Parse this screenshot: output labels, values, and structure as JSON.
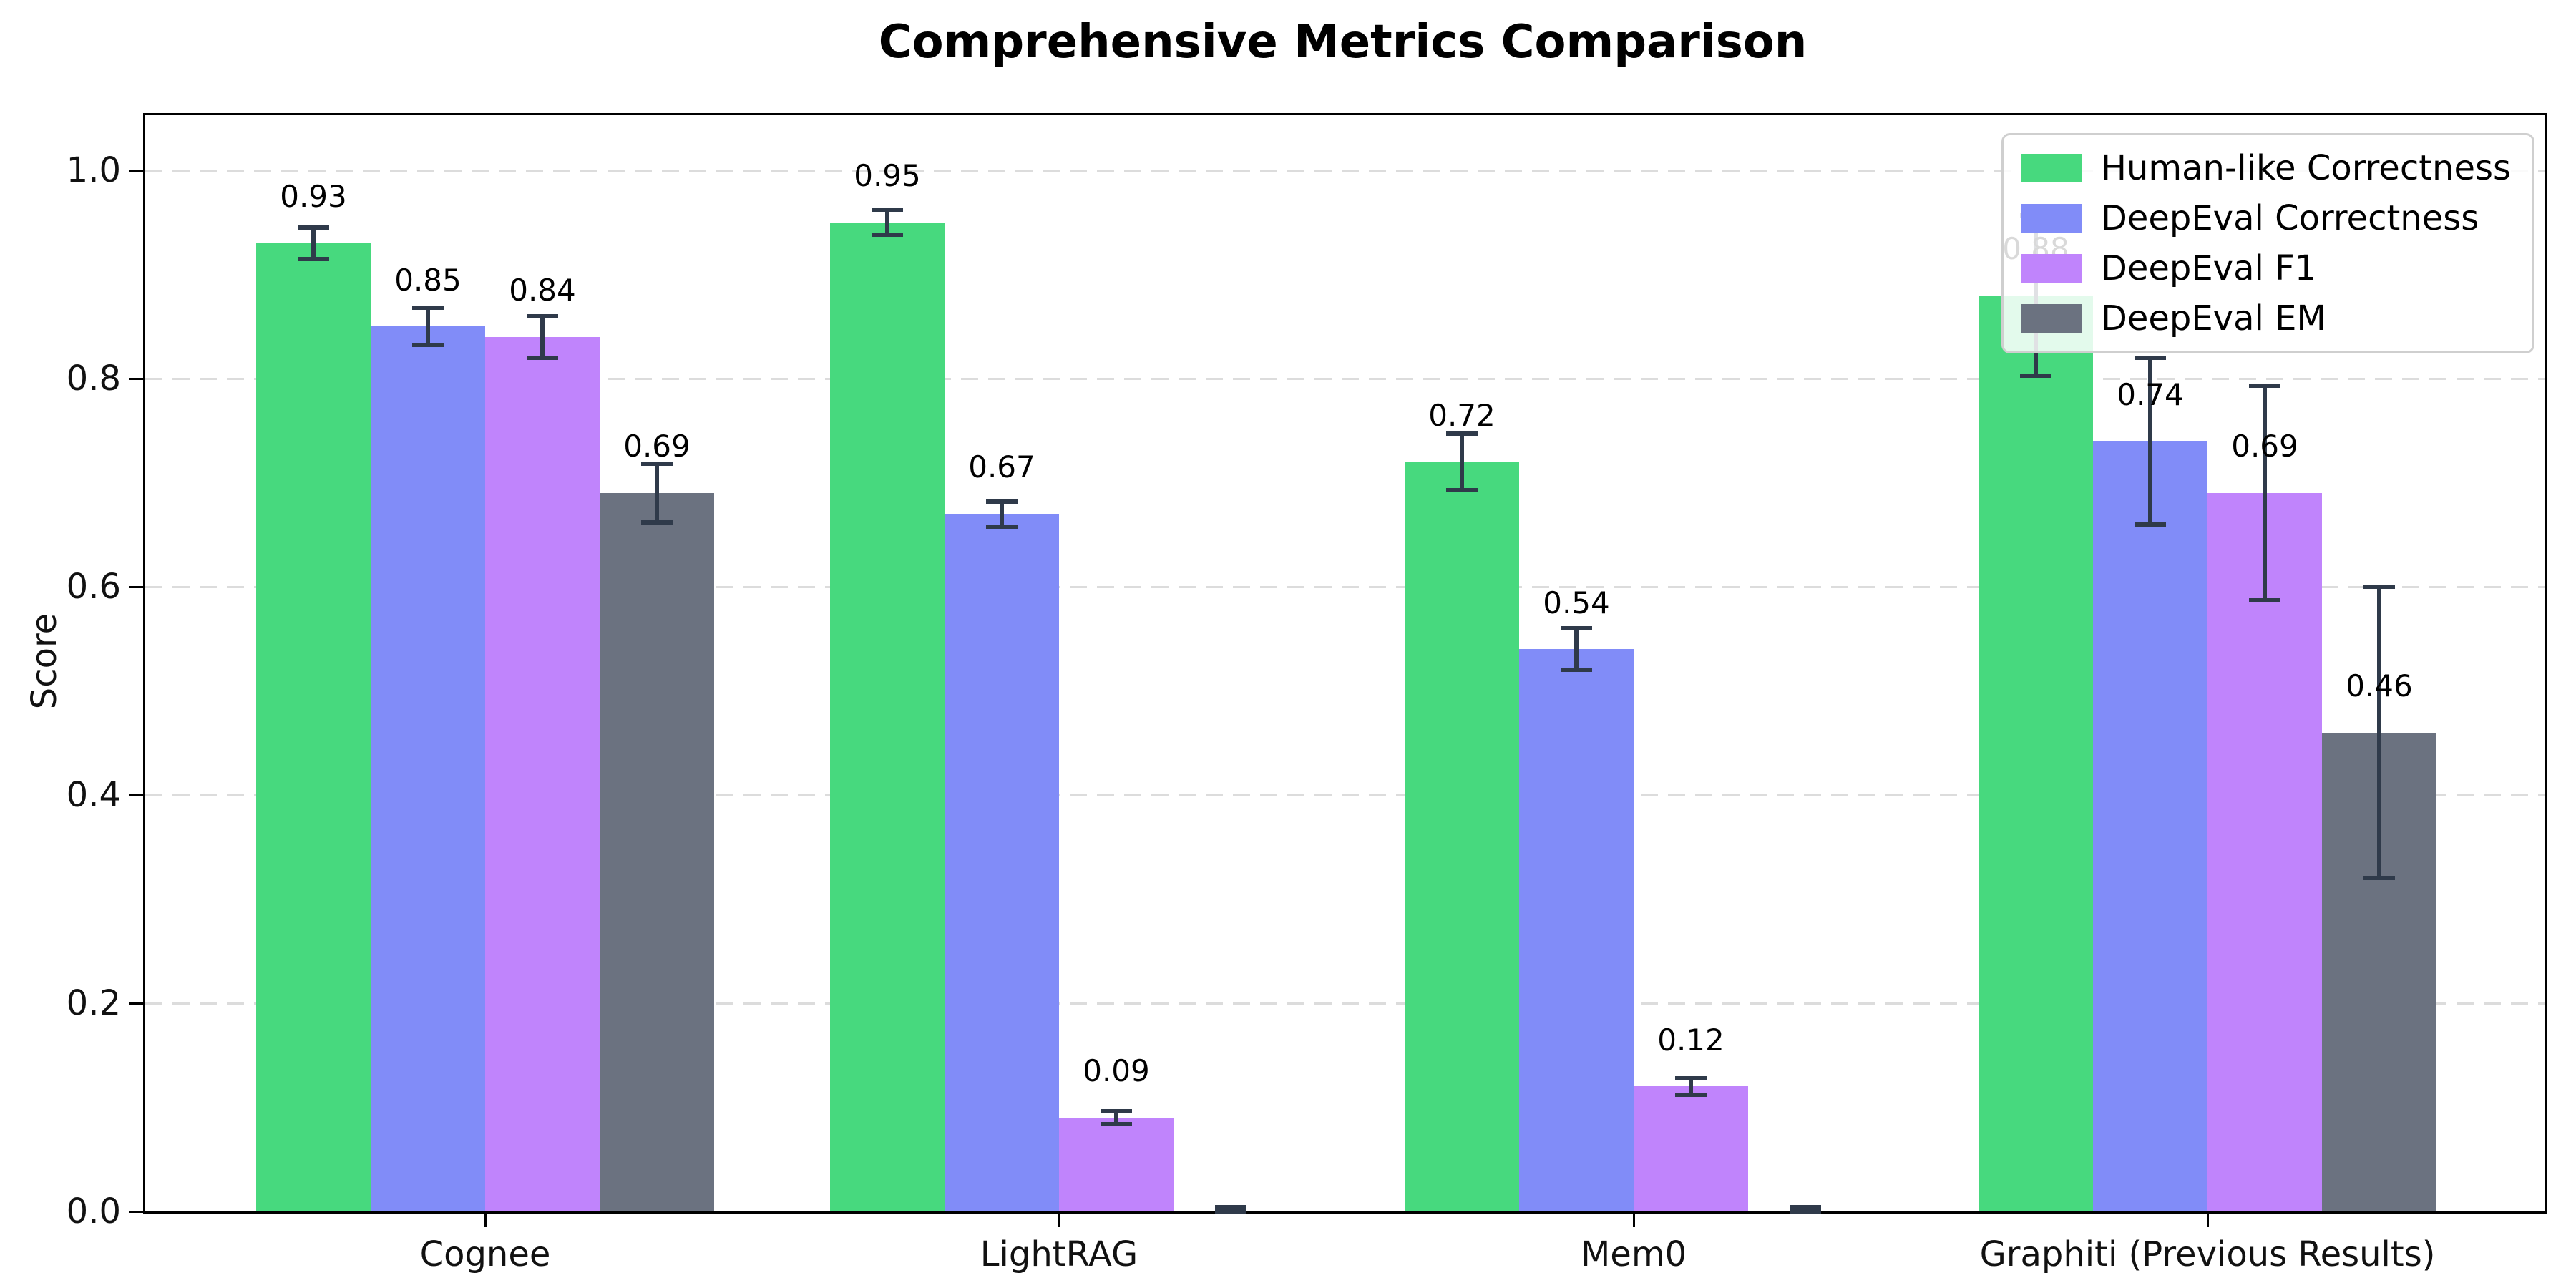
{
  "chart_data": {
    "type": "bar",
    "title": "Comprehensive Metrics Comparison",
    "xlabel": "",
    "ylabel": "Score",
    "categories": [
      "Cognee",
      "LightRAG",
      "Mem0",
      "Graphiti (Previous Results)"
    ],
    "series": [
      {
        "name": "Human-like Correctness",
        "color": "#47d97e",
        "values": [
          0.93,
          0.95,
          0.72,
          0.88
        ],
        "errors": [
          0.015,
          0.012,
          0.027,
          0.077
        ]
      },
      {
        "name": "DeepEval Correctness",
        "color": "#818cf8",
        "values": [
          0.85,
          0.67,
          0.54,
          0.74
        ],
        "errors": [
          0.018,
          0.012,
          0.02,
          0.08
        ]
      },
      {
        "name": "DeepEval F1",
        "color": "#c084fc",
        "values": [
          0.84,
          0.09,
          0.12,
          0.69
        ],
        "errors": [
          0.02,
          0.006,
          0.008,
          0.103
        ]
      },
      {
        "name": "DeepEval EM",
        "color": "#6b7280",
        "values": [
          0.69,
          0.0,
          0.0,
          0.46
        ],
        "errors": [
          0.028,
          0.004,
          0.004,
          0.14
        ]
      }
    ],
    "ylim": [
      0,
      1.05
    ],
    "yticks": [
      "0.0",
      "0.2",
      "0.4",
      "0.6",
      "0.8",
      "1.0"
    ],
    "grid": true,
    "legend_position": "upper right",
    "value_labels": [
      "0.93",
      "0.85",
      "0.84",
      "0.69",
      "0.95",
      "0.67",
      "0.09",
      "0.72",
      "0.54",
      "0.12",
      "0.88",
      "0.74",
      "0.69",
      "0.46"
    ]
  },
  "colors": {
    "error_bar": "#2f3a4a",
    "gridline": "#dcdcdc",
    "spine": "#000000",
    "background": "#ffffff"
  }
}
